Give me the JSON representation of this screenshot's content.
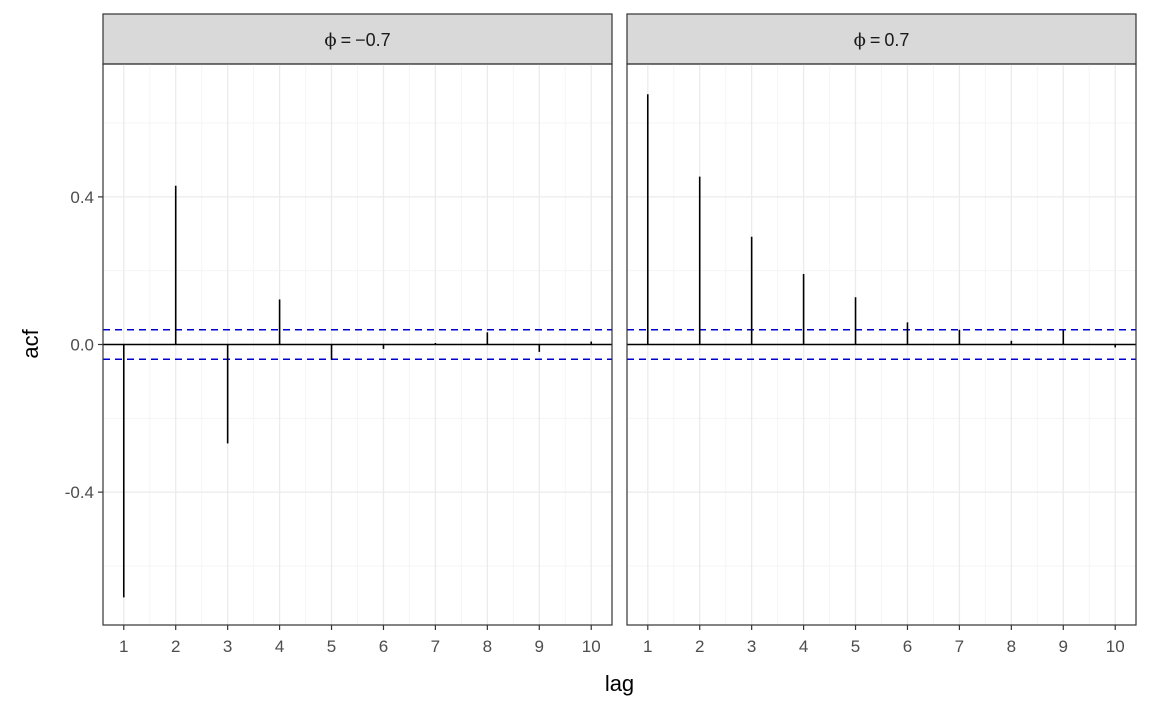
{
  "chart_data": {
    "type": "bar",
    "subtype": "acf-stem-plot-facets",
    "xlabel": "lag",
    "ylabel": "acf",
    "x": [
      1,
      2,
      3,
      4,
      5,
      6,
      7,
      8,
      9,
      10
    ],
    "x_ticks": [
      "1",
      "2",
      "3",
      "4",
      "5",
      "6",
      "7",
      "8",
      "9",
      "10"
    ],
    "xlim": [
      0.6,
      10.4
    ],
    "ylim": [
      -0.76,
      0.76
    ],
    "y_ticks": [
      -0.4,
      0.0,
      0.4
    ],
    "y_tick_labels": [
      "-0.4",
      "0.0",
      "0.4"
    ],
    "reference_line": {
      "y": 0.0,
      "color": "#000000",
      "style": "solid"
    },
    "confidence_bounds": {
      "values": [
        0.04,
        -0.04
      ],
      "color": "#0000cc",
      "style": "dashed"
    },
    "grid": true,
    "colors": {
      "stem": "#000000",
      "bounds": "#0000cc",
      "strip_fill": "#d9d9d9",
      "panel_border": "#333333",
      "grid_major": "#ebebeb",
      "grid_minor": "#f5f5f5",
      "tick_text": "#4d4d4d"
    },
    "facets": [
      {
        "strip_prefix": "ϕ",
        "strip_operator": "=",
        "strip_value": "−0.7",
        "values": [
          -0.685,
          0.43,
          -0.268,
          0.122,
          -0.041,
          -0.012,
          0.004,
          0.033,
          -0.02,
          0.008
        ]
      },
      {
        "strip_prefix": "ϕ",
        "strip_operator": "=",
        "strip_value": "0.7",
        "values": [
          0.678,
          0.455,
          0.292,
          0.191,
          0.128,
          0.06,
          0.04,
          0.01,
          0.038,
          -0.008
        ]
      }
    ]
  }
}
